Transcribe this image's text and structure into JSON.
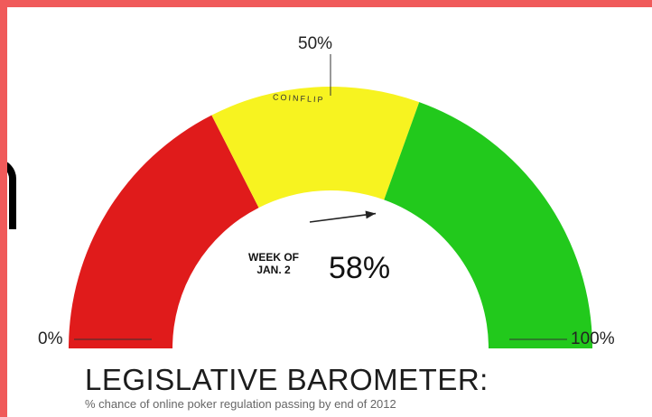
{
  "gauge": {
    "min_label": "0%",
    "mid_label": "50%",
    "max_label": "100%",
    "mid_zone_label": "COINFLIP",
    "reading_label": "WEEK OF\nJAN. 2",
    "reading_value_text": "58%",
    "reading_value": 58,
    "zones": [
      {
        "from": 0,
        "to": 35,
        "color": "#e01b1b"
      },
      {
        "from": 35,
        "to": 61,
        "color": "#f7f320"
      },
      {
        "from": 61,
        "to": 100,
        "color": "#22c91c"
      }
    ]
  },
  "title": "LEGISLATIVE BAROMETER:",
  "subtitle": "% chance of online poker regulation passing by end of 2012"
}
